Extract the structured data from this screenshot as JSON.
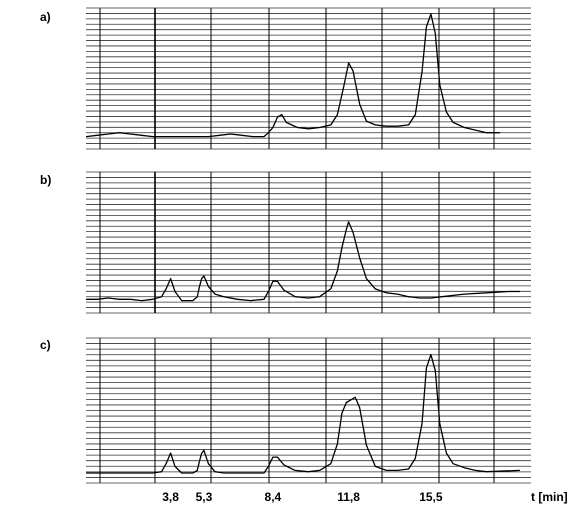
{
  "chart_data": {
    "type": "line",
    "xlabel": "t [min]",
    "xlim": [
      0,
      20
    ],
    "x_ticks": [
      {
        "value": 3.8,
        "label": "3,8"
      },
      {
        "value": 5.3,
        "label": "5,3"
      },
      {
        "value": 8.4,
        "label": "8,4"
      },
      {
        "value": 11.8,
        "label": "11,8"
      },
      {
        "value": 15.5,
        "label": "15,5"
      }
    ],
    "grid": true,
    "colors": {
      "line": "#000000",
      "grid": "#333333"
    },
    "panels": [
      {
        "label": "a)",
        "series": [
          {
            "x": [
              0.0,
              0.5,
              1.0,
              1.5,
              2.0,
              2.5,
              3.0,
              3.5,
              4.0,
              4.5,
              5.0,
              5.5,
              6.0,
              6.5,
              7.0,
              7.5,
              8.0,
              8.2,
              8.4,
              8.6,
              8.8,
              9.0,
              9.5,
              10.0,
              10.5,
              11.0,
              11.3,
              11.6,
              11.8,
              12.0,
              12.3,
              12.6,
              13.0,
              13.5,
              14.0,
              14.5,
              14.8,
              15.1,
              15.3,
              15.5,
              15.7,
              15.9,
              16.2,
              16.5,
              17.0,
              17.5,
              18.0,
              18.6
            ],
            "y": [
              0.05,
              0.06,
              0.07,
              0.08,
              0.07,
              0.06,
              0.05,
              0.05,
              0.05,
              0.05,
              0.05,
              0.05,
              0.06,
              0.07,
              0.06,
              0.05,
              0.05,
              0.08,
              0.12,
              0.2,
              0.22,
              0.16,
              0.12,
              0.11,
              0.12,
              0.14,
              0.22,
              0.45,
              0.62,
              0.56,
              0.3,
              0.17,
              0.14,
              0.13,
              0.13,
              0.14,
              0.22,
              0.55,
              0.9,
              1.0,
              0.85,
              0.45,
              0.24,
              0.16,
              0.12,
              0.1,
              0.08,
              0.08
            ]
          }
        ]
      },
      {
        "label": "b)",
        "series": [
          {
            "x": [
              0.0,
              0.5,
              1.0,
              1.5,
              2.0,
              2.5,
              3.0,
              3.4,
              3.6,
              3.8,
              4.0,
              4.3,
              4.8,
              5.0,
              5.1,
              5.2,
              5.3,
              5.5,
              5.8,
              6.2,
              6.8,
              7.4,
              8.0,
              8.2,
              8.4,
              8.6,
              8.9,
              9.4,
              10.0,
              10.5,
              11.0,
              11.3,
              11.5,
              11.7,
              11.8,
              12.0,
              12.3,
              12.6,
              13.0,
              13.5,
              14.0,
              14.5,
              15.0,
              15.5,
              16.0,
              17.0,
              18.0,
              19.0,
              19.5
            ],
            "y": [
              0.06,
              0.06,
              0.07,
              0.06,
              0.06,
              0.05,
              0.06,
              0.08,
              0.14,
              0.22,
              0.12,
              0.05,
              0.05,
              0.08,
              0.16,
              0.22,
              0.24,
              0.16,
              0.1,
              0.08,
              0.06,
              0.05,
              0.06,
              0.12,
              0.2,
              0.2,
              0.13,
              0.08,
              0.07,
              0.08,
              0.14,
              0.28,
              0.46,
              0.6,
              0.66,
              0.58,
              0.38,
              0.22,
              0.14,
              0.11,
              0.1,
              0.08,
              0.07,
              0.07,
              0.08,
              0.1,
              0.11,
              0.12,
              0.12
            ]
          }
        ]
      },
      {
        "label": "c)",
        "series": [
          {
            "x": [
              0.0,
              0.5,
              1.0,
              1.5,
              2.0,
              2.5,
              3.0,
              3.4,
              3.6,
              3.8,
              4.0,
              4.3,
              4.8,
              5.0,
              5.1,
              5.2,
              5.3,
              5.5,
              5.8,
              6.2,
              6.8,
              7.4,
              8.0,
              8.2,
              8.4,
              8.6,
              8.9,
              9.4,
              10.0,
              10.5,
              11.0,
              11.3,
              11.5,
              11.7,
              11.9,
              12.1,
              12.3,
              12.6,
              13.0,
              13.5,
              14.0,
              14.5,
              14.8,
              15.1,
              15.3,
              15.5,
              15.7,
              15.9,
              16.2,
              16.5,
              17.0,
              17.5,
              18.0,
              19.5
            ],
            "y": [
              0.03,
              0.03,
              0.03,
              0.03,
              0.03,
              0.03,
              0.03,
              0.04,
              0.1,
              0.18,
              0.08,
              0.03,
              0.03,
              0.05,
              0.12,
              0.18,
              0.2,
              0.1,
              0.04,
              0.03,
              0.03,
              0.03,
              0.03,
              0.08,
              0.15,
              0.15,
              0.09,
              0.05,
              0.04,
              0.05,
              0.1,
              0.25,
              0.48,
              0.56,
              0.58,
              0.6,
              0.52,
              0.24,
              0.08,
              0.05,
              0.05,
              0.06,
              0.14,
              0.4,
              0.82,
              0.92,
              0.8,
              0.4,
              0.18,
              0.1,
              0.07,
              0.05,
              0.04,
              0.05
            ]
          }
        ]
      }
    ]
  }
}
